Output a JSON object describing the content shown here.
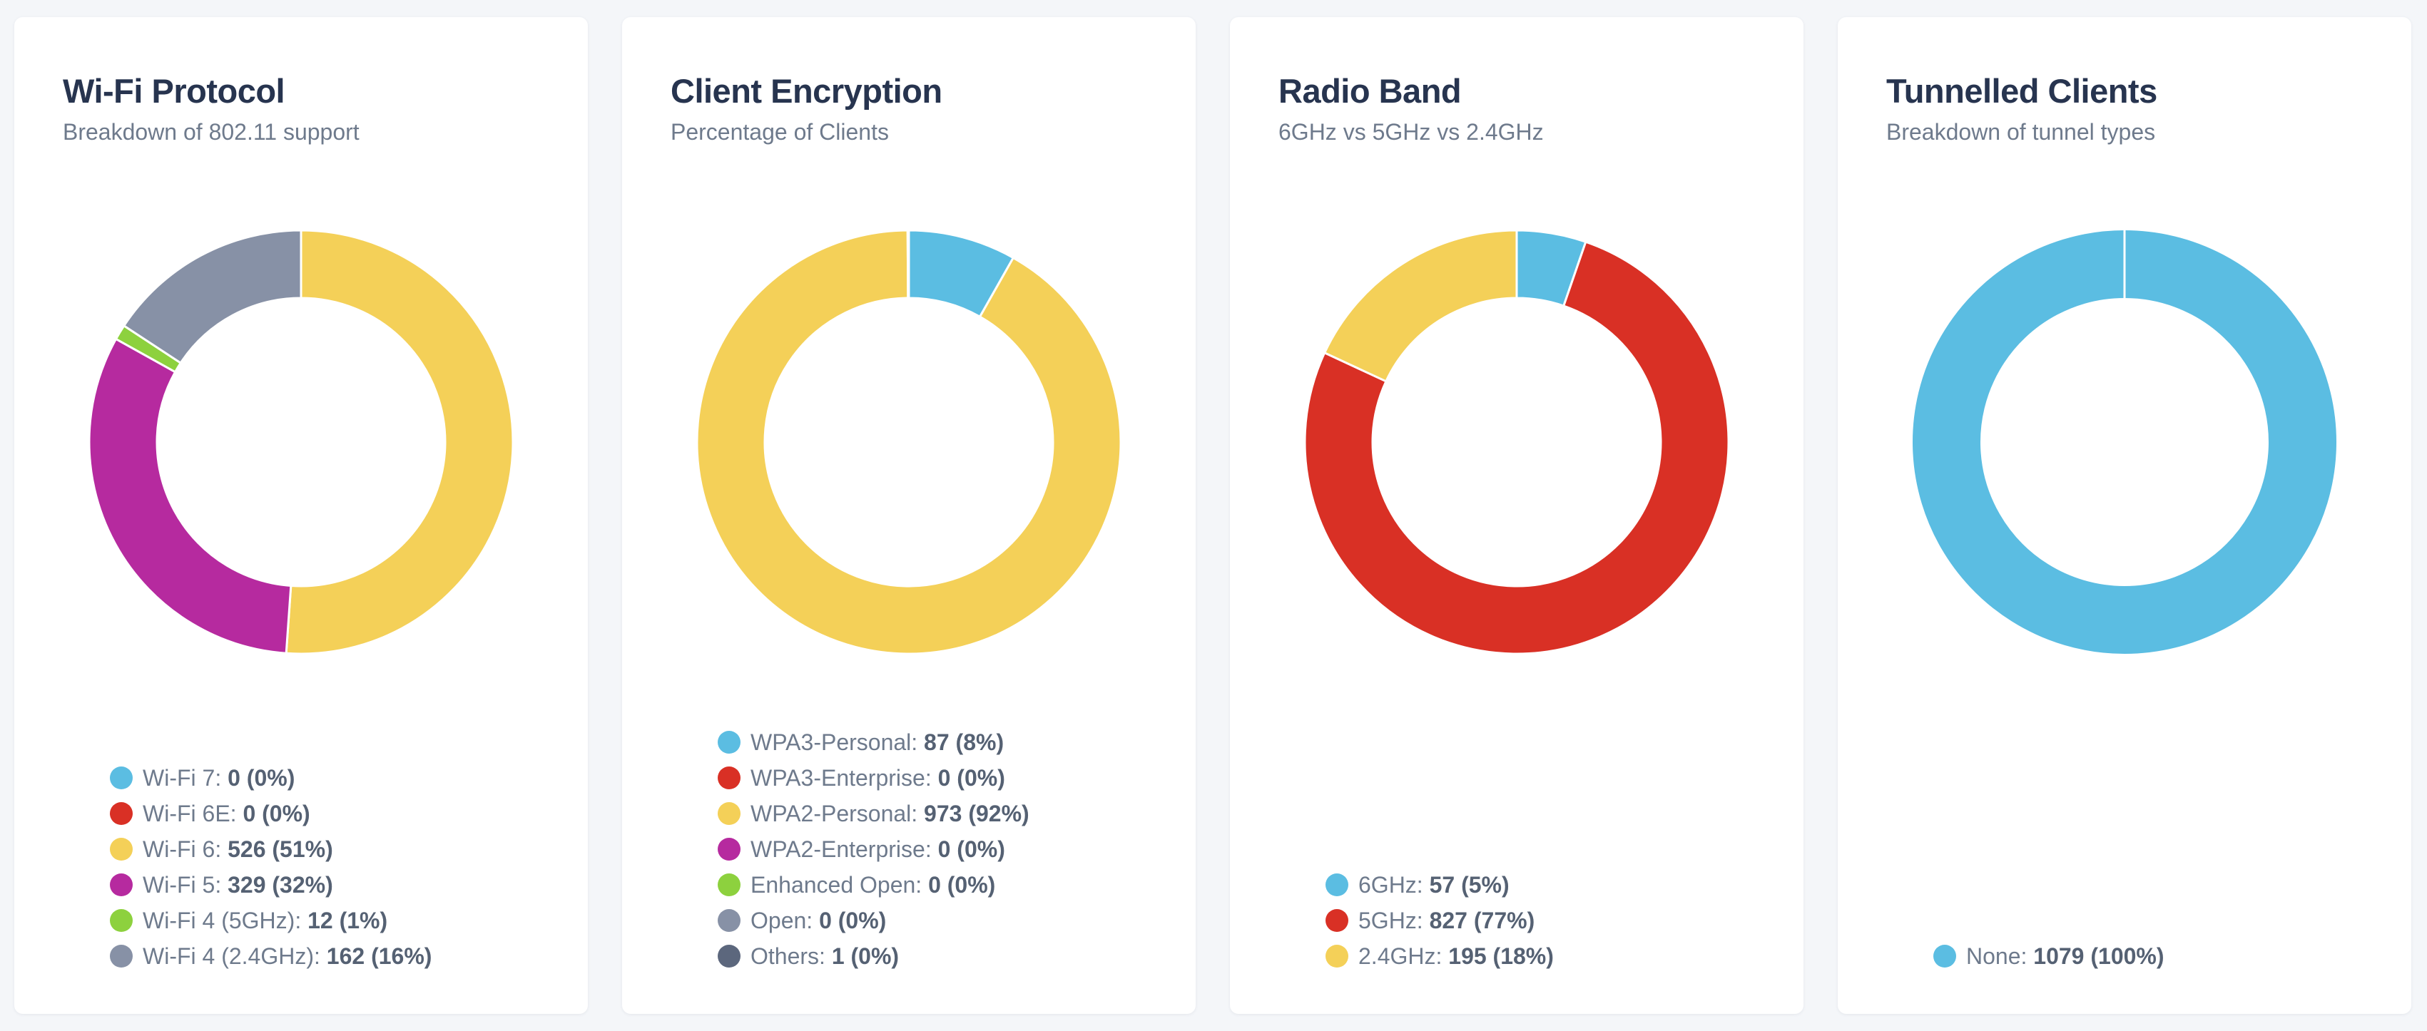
{
  "cards": [
    {
      "title": "Wi-Fi Protocol",
      "subtitle": "Breakdown of 802.11 support",
      "chart_ref": 0
    },
    {
      "title": "Client Encryption",
      "subtitle": "Percentage of Clients",
      "chart_ref": 1
    },
    {
      "title": "Radio Band",
      "subtitle": "6GHz vs 5GHz vs 2.4GHz",
      "chart_ref": 2
    },
    {
      "title": "Tunnelled Clients",
      "subtitle": "Breakdown of tunnel types",
      "chart_ref": 3
    }
  ],
  "chart_data": [
    {
      "type": "pie",
      "variant": "donut",
      "title": "Wi-Fi Protocol",
      "subtitle": "Breakdown of 802.11 support",
      "legend_position": "bottom",
      "slices": [
        {
          "label": "Wi-Fi 7",
          "value": 0,
          "value_text": "0 (0%)",
          "color": "#5bbde2"
        },
        {
          "label": "Wi-Fi 6E",
          "value": 0,
          "value_text": "0 (0%)",
          "color": "#d93025"
        },
        {
          "label": "Wi-Fi 6",
          "value": 526,
          "value_text": "526 (51%)",
          "color": "#f4d058"
        },
        {
          "label": "Wi-Fi 5",
          "value": 329,
          "value_text": "329 (32%)",
          "color": "#b62a9f"
        },
        {
          "label": "Wi-Fi 4 (5GHz)",
          "value": 12,
          "value_text": "12 (1%)",
          "color": "#8dd13e"
        },
        {
          "label": "Wi-Fi 4 (2.4GHz)",
          "value": 162,
          "value_text": "162 (16%)",
          "color": "#8791a6"
        }
      ]
    },
    {
      "type": "pie",
      "variant": "donut",
      "title": "Client Encryption",
      "subtitle": "Percentage of Clients",
      "legend_position": "bottom",
      "slices": [
        {
          "label": "WPA3-Personal",
          "value": 87,
          "value_text": "87 (8%)",
          "color": "#5bbde2"
        },
        {
          "label": "WPA3-Enterprise",
          "value": 0,
          "value_text": "0 (0%)",
          "color": "#d93025"
        },
        {
          "label": "WPA2-Personal",
          "value": 973,
          "value_text": "973 (92%)",
          "color": "#f4d058"
        },
        {
          "label": "WPA2-Enterprise",
          "value": 0,
          "value_text": "0 (0%)",
          "color": "#b62a9f"
        },
        {
          "label": "Enhanced Open",
          "value": 0,
          "value_text": "0 (0%)",
          "color": "#8dd13e"
        },
        {
          "label": "Open",
          "value": 0,
          "value_text": "0 (0%)",
          "color": "#8791a6"
        },
        {
          "label": "Others",
          "value": 1,
          "value_text": "1 (0%)",
          "color": "#5c677d"
        }
      ]
    },
    {
      "type": "pie",
      "variant": "donut",
      "title": "Radio Band",
      "subtitle": "6GHz vs 5GHz vs 2.4GHz",
      "legend_position": "bottom",
      "slices": [
        {
          "label": "6GHz",
          "value": 57,
          "value_text": "57 (5%)",
          "color": "#5bbde2"
        },
        {
          "label": "5GHz",
          "value": 827,
          "value_text": "827 (77%)",
          "color": "#d93025"
        },
        {
          "label": "2.4GHz",
          "value": 195,
          "value_text": "195 (18%)",
          "color": "#f4d058"
        }
      ]
    },
    {
      "type": "pie",
      "variant": "donut",
      "title": "Tunnelled Clients",
      "subtitle": "Breakdown of tunnel types",
      "legend_position": "bottom",
      "slices": [
        {
          "label": "None",
          "value": 1079,
          "value_text": "1079 (100%)",
          "color": "#5bbde2"
        }
      ]
    }
  ]
}
